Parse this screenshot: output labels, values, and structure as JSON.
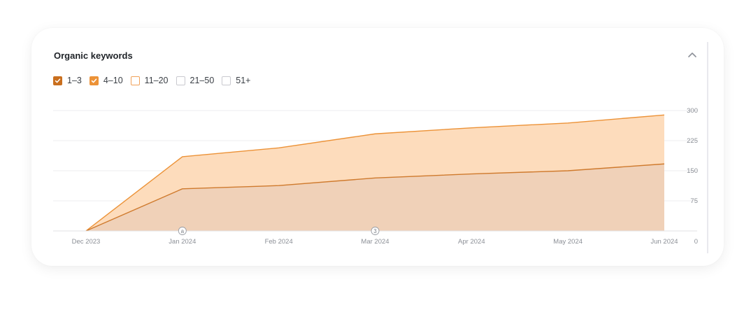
{
  "panel": {
    "title": "Organic keywords"
  },
  "legend": {
    "items": [
      {
        "label": "1–3",
        "checked": true,
        "color": "#c96f1e"
      },
      {
        "label": "4–10",
        "checked": true,
        "color": "#ec9237"
      },
      {
        "label": "11–20",
        "checked": false,
        "color": "#f0a25a"
      },
      {
        "label": "21–50",
        "checked": false,
        "color": "#c9c9cf"
      },
      {
        "label": "51+",
        "checked": false,
        "color": "#c9c9cf"
      }
    ]
  },
  "colors": {
    "series_1_3_line": "#cf7a2d",
    "series_1_3_fill": "#efd0b7",
    "series_4_10_line": "#ec9237",
    "series_4_10_fill": "#fddcbc",
    "grid": "#ececef"
  },
  "chart_data": {
    "type": "area",
    "x": [
      "Dec 2023",
      "Jan 2024",
      "Feb 2024",
      "Mar 2024",
      "Apr 2024",
      "May 2024",
      "Jun 2024"
    ],
    "y_ticks": [
      0,
      75,
      150,
      225,
      300
    ],
    "ylim": [
      0,
      300
    ],
    "series": [
      {
        "name": "1–3",
        "values": [
          0,
          105,
          113,
          132,
          142,
          150,
          167
        ]
      },
      {
        "name": "4–10",
        "values": [
          0,
          185,
          207,
          242,
          257,
          269,
          289
        ]
      }
    ],
    "annotations": [
      {
        "x": "Jan 2024",
        "label": "a"
      },
      {
        "x": "Mar 2024",
        "label": "3"
      }
    ],
    "grid": true,
    "stacked": false
  }
}
